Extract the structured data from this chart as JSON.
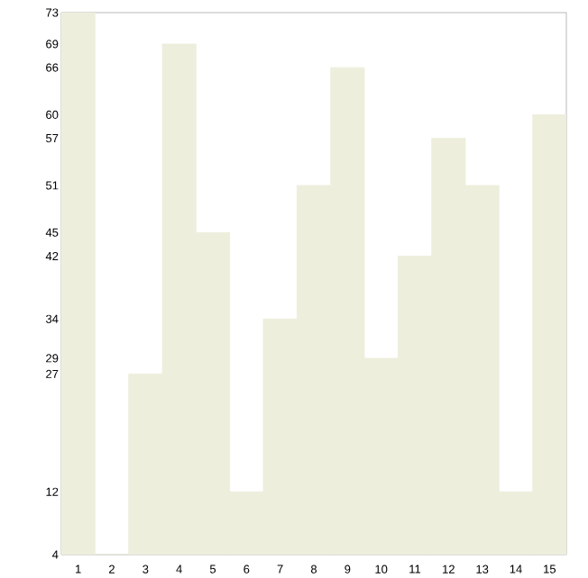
{
  "chart_data": {
    "type": "bar",
    "categories": [
      "1",
      "2",
      "3",
      "4",
      "5",
      "6",
      "7",
      "8",
      "9",
      "10",
      "11",
      "12",
      "13",
      "14",
      "15"
    ],
    "values": [
      73,
      4,
      27,
      69,
      45,
      12,
      34,
      51,
      66,
      29,
      42,
      57,
      51,
      12,
      60
    ],
    "color": "#eeeedd",
    "ylim": [
      4,
      73
    ],
    "yticks": [
      4,
      12,
      27,
      29,
      34,
      42,
      45,
      51,
      57,
      60,
      66,
      69,
      73
    ],
    "grid": false
  }
}
